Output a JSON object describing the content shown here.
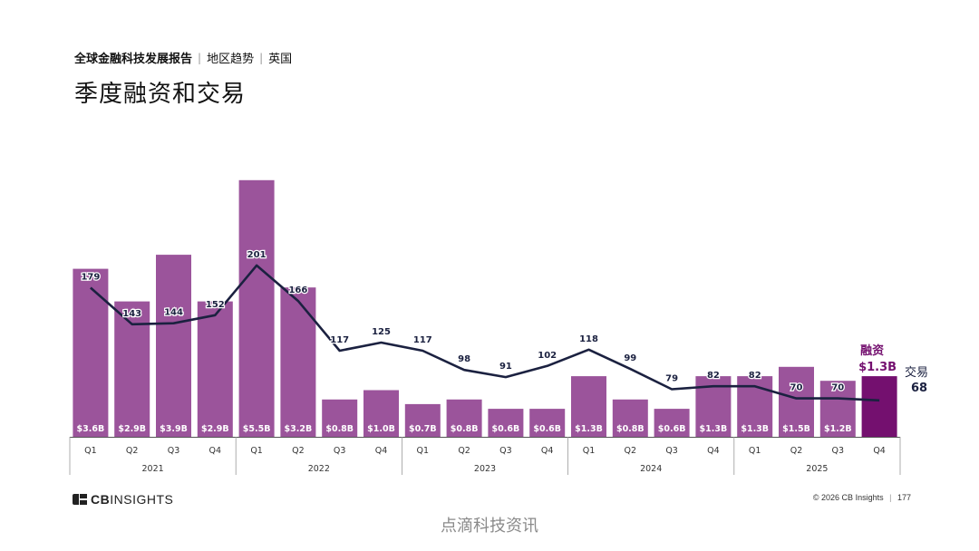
{
  "header": {
    "breadcrumb": {
      "report": "全球金融科技发展报告",
      "section": "地区趋势",
      "region": "英国"
    },
    "title": "季度融资和交易"
  },
  "chart_data": {
    "type": "bar",
    "categories": [
      "Q1",
      "Q2",
      "Q3",
      "Q4",
      "Q1",
      "Q2",
      "Q3",
      "Q4",
      "Q1",
      "Q2",
      "Q3",
      "Q4",
      "Q1",
      "Q2",
      "Q3",
      "Q4",
      "Q1",
      "Q2",
      "Q3",
      "Q4"
    ],
    "years": [
      "2021",
      "2022",
      "2023",
      "2024",
      "2025"
    ],
    "series": [
      {
        "type": "bar",
        "name": "融资",
        "values": [
          3.6,
          2.9,
          3.9,
          2.9,
          5.5,
          3.2,
          0.8,
          1.0,
          0.7,
          0.8,
          0.6,
          0.6,
          1.3,
          0.8,
          0.6,
          1.3,
          1.3,
          1.5,
          1.2,
          1.3
        ],
        "labels": [
          "$3.6B",
          "$2.9B",
          "$3.9B",
          "$2.9B",
          "$5.5B",
          "$3.2B",
          "$0.8B",
          "$1.0B",
          "$0.7B",
          "$0.8B",
          "$0.6B",
          "$0.6B",
          "$1.3B",
          "$0.8B",
          "$0.6B",
          "$1.3B",
          "$1.3B",
          "$1.5B",
          "$1.2B",
          ""
        ]
      },
      {
        "type": "line",
        "name": "交易",
        "values": [
          179,
          143,
          144,
          152,
          201,
          166,
          117,
          125,
          117,
          98,
          91,
          102,
          118,
          99,
          79,
          82,
          82,
          70,
          70,
          68
        ],
        "labels": [
          "179",
          "143",
          "144",
          "152",
          "201",
          "166",
          "117",
          "125",
          "117",
          "98",
          "91",
          "102",
          "118",
          "99",
          "79",
          "82",
          "82",
          "70",
          "70",
          ""
        ]
      }
    ],
    "callouts": {
      "funding_name": "融资",
      "funding_value": "$1.3B",
      "deals_name": "交易",
      "deals_value": "68"
    },
    "colors": {
      "bar": "#9b549b",
      "bar_latest": "#74106f",
      "line": "#1b2140",
      "axis": "#555555",
      "callout_funding": "#74106f",
      "callout_deals": "#1b2140"
    }
  },
  "footer": {
    "logo_prefix": "CB",
    "logo_suffix": "INSIGHTS",
    "copyright": "© 2026 CB Insights",
    "page_number": "177"
  },
  "watermark": "点滴科技资讯"
}
